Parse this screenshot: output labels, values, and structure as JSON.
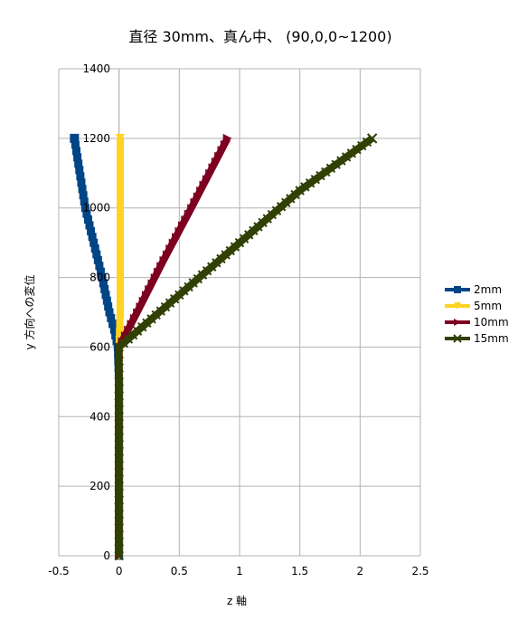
{
  "chart_data": {
    "type": "line",
    "title": "直径 30mm、真ん中、 (90,0,0~1200)",
    "xlabel": "z 軸",
    "ylabel": "y 方向への変位",
    "xlim": [
      -0.5,
      2.5
    ],
    "ylim": [
      0,
      1400
    ],
    "xticks": [
      -0.5,
      0,
      0.5,
      1,
      1.5,
      2,
      2.5
    ],
    "xtick_labels": [
      "-0.5",
      "0",
      "0.5",
      "1",
      "1.5",
      "2",
      "2.5"
    ],
    "yticks": [
      0,
      200,
      400,
      600,
      800,
      1000,
      1200,
      1400
    ],
    "ytick_labels": [
      "0",
      "200",
      "400",
      "600",
      "800",
      "1000",
      "1200",
      "1400"
    ],
    "grid": true,
    "legend_position": "right",
    "series": [
      {
        "name": "2mm",
        "color": "#004586",
        "marker": "square",
        "x": [
          0,
          0,
          0,
          0,
          0,
          0,
          -0.01,
          -0.04,
          -0.08,
          -0.14,
          -0.21,
          -0.28,
          -0.37
        ],
        "y": [
          0,
          100,
          200,
          300,
          400,
          500,
          600,
          650,
          700,
          800,
          900,
          1000,
          1200
        ]
      },
      {
        "name": "5mm",
        "color": "#ffd320",
        "marker": "triangle-down",
        "x": [
          0,
          0,
          0,
          0,
          0,
          0,
          0,
          0.01,
          0.01,
          0.01,
          0.01
        ],
        "y": [
          0,
          100,
          200,
          300,
          400,
          500,
          600,
          700,
          800,
          1000,
          1200
        ]
      },
      {
        "name": "10mm",
        "color": "#7e0021",
        "marker": "triangle-right",
        "x": [
          0,
          0,
          0,
          0,
          0,
          0,
          0,
          0.15,
          0.37,
          0.6,
          0.9
        ],
        "y": [
          0,
          100,
          200,
          300,
          400,
          500,
          600,
          700,
          850,
          1000,
          1200
        ]
      },
      {
        "name": "15mm",
        "color": "#314004",
        "marker": "x",
        "x": [
          0,
          0,
          0,
          0,
          0,
          0,
          0,
          0.5,
          1.0,
          1.5,
          2.1
        ],
        "y": [
          0,
          100,
          200,
          300,
          400,
          500,
          600,
          750,
          900,
          1050,
          1200
        ]
      }
    ]
  }
}
